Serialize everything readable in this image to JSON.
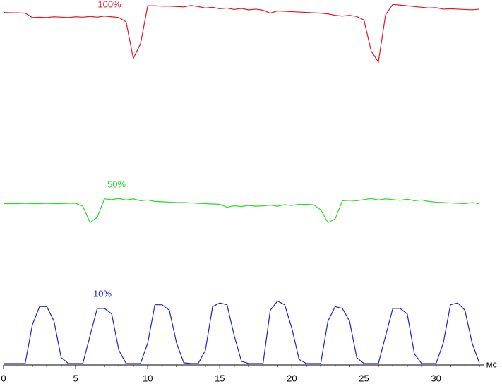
{
  "chart_data": {
    "type": "line",
    "x_label": "мс",
    "x": [
      0,
      0.5,
      1,
      1.5,
      2,
      2.5,
      3,
      3.5,
      4,
      4.5,
      5,
      5.5,
      6,
      6.5,
      7,
      7.5,
      8,
      8.5,
      9,
      9.5,
      10,
      10.5,
      11,
      11.5,
      12,
      12.5,
      13,
      13.5,
      14,
      14.5,
      15,
      15.5,
      16,
      16.5,
      17,
      17.5,
      18,
      18.5,
      19,
      19.5,
      20,
      20.5,
      21,
      21.5,
      22,
      22.5,
      23,
      23.5,
      24,
      24.5,
      25,
      25.5,
      26,
      26.5,
      27,
      27.5,
      28,
      28.5,
      29,
      29.5,
      30,
      30.5,
      31,
      31.5,
      32,
      32.5,
      33
    ],
    "series": [
      {
        "name": "100%",
        "color": "#e8141c",
        "values": [
          96.6,
          96.5,
          96.5,
          96.4,
          95.2,
          95.3,
          95.2,
          95.4,
          95.3,
          95.2,
          95.4,
          95.3,
          95.5,
          95.3,
          95.6,
          95.4,
          95.2,
          94,
          84,
          88,
          98.4,
          98.4,
          98.3,
          98.3,
          98.2,
          98.1,
          98.5,
          98.2,
          97.8,
          98.0,
          97.6,
          97.8,
          97.4,
          97.7,
          97.3,
          97.5,
          97.2,
          96.4,
          97.0,
          96.9,
          96.8,
          96.7,
          96.6,
          96.5,
          96.4,
          96.2,
          95.8,
          95.6,
          95.8,
          95.5,
          94.5,
          86,
          83,
          96,
          98.8,
          98.6,
          98.4,
          98.2,
          98.0,
          97.8,
          97.9,
          97.5,
          97.6,
          97.5,
          97.4,
          97.3,
          97.5
        ]
      },
      {
        "name": "50%",
        "color": "#22dd22",
        "values": [
          44.2,
          44.2,
          44.2,
          44.3,
          44.2,
          44.2,
          44.3,
          44.2,
          44.2,
          44.3,
          44.3,
          43.5,
          39,
          40.5,
          45.5,
          45.3,
          45.6,
          45.2,
          45.5,
          45.0,
          45.2,
          44.8,
          44.7,
          44.6,
          44.5,
          44.5,
          44.4,
          44.3,
          44.2,
          44.1,
          44.0,
          43.2,
          43.6,
          43.4,
          43.7,
          43.5,
          43.6,
          43.8,
          43.5,
          43.9,
          43.7,
          44.0,
          44.0,
          43.9,
          42.5,
          39,
          40,
          45,
          45.1,
          45.0,
          45.3,
          45.6,
          45.2,
          45.5,
          45.3,
          45.1,
          45.4,
          45.0,
          45.2,
          44.8,
          44.6,
          44.5,
          44.4,
          44.3,
          44.2,
          44.5,
          44.2
        ]
      },
      {
        "name": "10%",
        "color": "#2020d0",
        "values": [
          0.4,
          0.4,
          0.4,
          0.4,
          11,
          16,
          16,
          12,
          2,
          0.4,
          0.4,
          0.4,
          8,
          15.5,
          15.5,
          14,
          4,
          0.4,
          0.4,
          0.4,
          6,
          16.5,
          16.5,
          15,
          6,
          0.6,
          0.4,
          0.4,
          4,
          16,
          17,
          16.5,
          8,
          1,
          0.4,
          0.4,
          0.4,
          15,
          17.5,
          16.5,
          10,
          1.5,
          0.4,
          0.4,
          0.4,
          12,
          16,
          15.5,
          12,
          2,
          0.4,
          0.4,
          0.4,
          8,
          15.5,
          15.5,
          14,
          3,
          0.4,
          0.4,
          0.4,
          6,
          16.5,
          17,
          15,
          6,
          0.6
        ]
      }
    ],
    "xlim": [
      0,
      33.3
    ],
    "xticks": [
      0,
      5,
      10,
      15,
      20,
      25,
      30
    ],
    "x_minor_step": 1,
    "ylim": [
      0,
      100
    ]
  }
}
